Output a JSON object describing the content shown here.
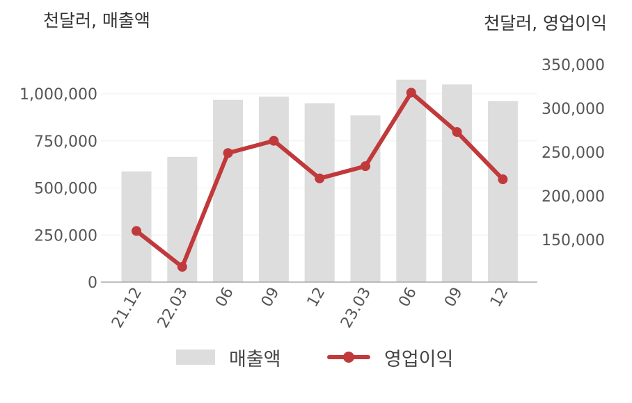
{
  "chart_data": {
    "type": "bar+line",
    "left_unit_label": "천달러, 매출액",
    "right_unit_label": "천달러, 영업이익",
    "categories": [
      "21.12",
      "22.03",
      "06",
      "09",
      "12",
      "23.03",
      "06",
      "09",
      "12"
    ],
    "series": [
      {
        "name": "매출액",
        "type": "bar",
        "axis": "left",
        "color": "#dddddd",
        "values": [
          588000,
          665000,
          968000,
          985000,
          950000,
          885000,
          1075000,
          1050000,
          962000
        ]
      },
      {
        "name": "영업이익",
        "type": "line",
        "axis": "right",
        "color": "#c0393b",
        "values": [
          160000,
          119000,
          249000,
          263000,
          220000,
          234000,
          318000,
          273000,
          219000
        ]
      }
    ],
    "left_axis": {
      "ylim": [
        0,
        1000000
      ],
      "ticks": [
        0,
        250000,
        500000,
        750000,
        1000000
      ],
      "tick_labels": [
        "0",
        "250,000",
        "500,000",
        "750,000",
        "1,000,000"
      ]
    },
    "right_axis": {
      "ylim": [
        150000,
        350000
      ],
      "ticks": [
        150000,
        200000,
        250000,
        300000,
        350000
      ],
      "tick_labels": [
        "150,000",
        "200,000",
        "250,000",
        "300,000",
        "350,000"
      ]
    },
    "grid": true,
    "legend_position": "bottom"
  }
}
